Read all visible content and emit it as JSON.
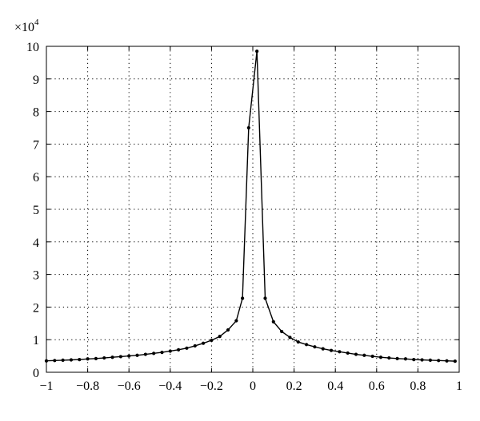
{
  "chart_data": {
    "type": "line",
    "title": "",
    "xlabel": "",
    "ylabel": "",
    "y_multiplier": {
      "base": "×10",
      "exponent": "4"
    },
    "xlim": [
      -1,
      1
    ],
    "ylim": [
      0,
      10
    ],
    "x_ticks": [
      -1,
      -0.8,
      -0.6,
      -0.4,
      -0.2,
      0,
      0.2,
      0.4,
      0.6,
      0.8,
      1
    ],
    "x_tick_labels": [
      "−1",
      "−0.8",
      "−0.6",
      "−0.4",
      "−0.2",
      "0",
      "0.2",
      "0.4",
      "0.6",
      "0.8",
      "1"
    ],
    "y_ticks": [
      0,
      1,
      2,
      3,
      4,
      5,
      6,
      7,
      8,
      9,
      10
    ],
    "y_tick_labels": [
      "0",
      "1",
      "2",
      "3",
      "4",
      "5",
      "6",
      "7",
      "8",
      "9",
      "10"
    ],
    "grid": true,
    "line_color": "#000000",
    "marker": "dot",
    "series": [
      {
        "x": [
          -1.0,
          -0.96,
          -0.92,
          -0.88,
          -0.84,
          -0.8,
          -0.76,
          -0.72,
          -0.68,
          -0.64,
          -0.6,
          -0.56,
          -0.52,
          -0.48,
          -0.44,
          -0.4,
          -0.36,
          -0.32,
          -0.28,
          -0.24,
          -0.2,
          -0.16,
          -0.12,
          -0.08,
          -0.05,
          -0.02,
          0.02,
          0.06,
          0.1,
          0.14,
          0.18,
          0.22,
          0.26,
          0.3,
          0.34,
          0.38,
          0.42,
          0.46,
          0.5,
          0.54,
          0.58,
          0.62,
          0.66,
          0.7,
          0.74,
          0.78,
          0.82,
          0.86,
          0.9,
          0.94,
          0.98
        ],
        "values": [
          0.35,
          0.36,
          0.37,
          0.38,
          0.39,
          0.41,
          0.42,
          0.44,
          0.46,
          0.48,
          0.5,
          0.52,
          0.55,
          0.58,
          0.61,
          0.65,
          0.69,
          0.74,
          0.81,
          0.89,
          0.98,
          1.1,
          1.3,
          1.58,
          2.27,
          7.5,
          9.85,
          2.27,
          1.55,
          1.25,
          1.07,
          0.93,
          0.85,
          0.78,
          0.72,
          0.67,
          0.63,
          0.59,
          0.55,
          0.52,
          0.49,
          0.46,
          0.44,
          0.42,
          0.41,
          0.39,
          0.38,
          0.37,
          0.36,
          0.35,
          0.34
        ]
      }
    ]
  }
}
